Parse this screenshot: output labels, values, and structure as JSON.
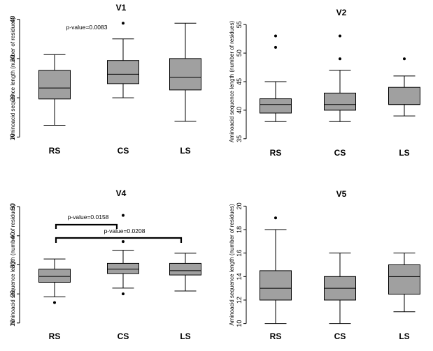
{
  "chart_data": [
    {
      "type": "boxplot",
      "title": "V1",
      "ylabel": "Aminoacid sequence length (number of residues)",
      "categories": [
        "RS",
        "CS",
        "LS"
      ],
      "ylim": [
        9,
        41
      ],
      "yticks": [
        10,
        20,
        30,
        40
      ],
      "boxes": [
        {
          "min": 13,
          "q1": 19.7,
          "median": 22.5,
          "q3": 27,
          "max": 31,
          "outliers": []
        },
        {
          "min": 20,
          "q1": 23.6,
          "median": 26,
          "q3": 29.5,
          "max": 35,
          "outliers": [
            39
          ]
        },
        {
          "min": 14,
          "q1": 22,
          "median": 25.2,
          "q3": 30,
          "max": 39,
          "outliers": []
        }
      ],
      "annotations": [
        {
          "text": "p-value=0.0083"
        }
      ]
    },
    {
      "type": "boxplot",
      "title": "V2",
      "ylabel": "Aminoacid sequence length (number of residues)",
      "categories": [
        "RS",
        "CS",
        "LS"
      ],
      "ylim": [
        34,
        56
      ],
      "yticks": [
        35,
        40,
        45,
        50,
        55
      ],
      "boxes": [
        {
          "min": 38,
          "q1": 39.5,
          "median": 41,
          "q3": 42,
          "max": 45,
          "outliers": [
            51,
            53
          ]
        },
        {
          "min": 38,
          "q1": 40,
          "median": 41,
          "q3": 43,
          "max": 47,
          "outliers": [
            49,
            53
          ]
        },
        {
          "min": 39,
          "q1": 41,
          "median": 41,
          "q3": 44,
          "max": 46,
          "outliers": [
            49
          ]
        }
      ],
      "annotations": []
    },
    {
      "type": "boxplot",
      "title": "V4",
      "ylabel": "Aminoacid sequence length (number of residues)",
      "categories": [
        "RS",
        "CS",
        "LS"
      ],
      "ylim": [
        9,
        51
      ],
      "yticks": [
        10,
        20,
        30,
        40,
        50
      ],
      "boxes": [
        {
          "min": 19,
          "q1": 24,
          "median": 26,
          "q3": 28.5,
          "max": 32,
          "outliers": [
            17
          ]
        },
        {
          "min": 22,
          "q1": 27,
          "median": 28.5,
          "q3": 30.5,
          "max": 35,
          "outliers": [
            20,
            38,
            47
          ]
        },
        {
          "min": 21,
          "q1": 26.5,
          "median": 28,
          "q3": 30.5,
          "max": 34,
          "outliers": []
        }
      ],
      "annotations": [
        {
          "text": "p-value=0.0158"
        },
        {
          "text": "p-value=0.0208"
        }
      ]
    },
    {
      "type": "boxplot",
      "title": "V5",
      "ylabel": "Aminoacid sequence length (number of residues)",
      "categories": [
        "RS",
        "CS",
        "LS"
      ],
      "ylim": [
        9.8,
        20.2
      ],
      "yticks": [
        10,
        12,
        14,
        16,
        18,
        20
      ],
      "boxes": [
        {
          "min": 10,
          "q1": 12,
          "median": 13,
          "q3": 14.5,
          "max": 18,
          "outliers": [
            19
          ]
        },
        {
          "min": 10,
          "q1": 12,
          "median": 13,
          "q3": 14,
          "max": 16,
          "outliers": []
        },
        {
          "min": 11,
          "q1": 12.5,
          "median": 14,
          "q3": 15,
          "max": 16,
          "outliers": []
        }
      ],
      "annotations": []
    }
  ]
}
